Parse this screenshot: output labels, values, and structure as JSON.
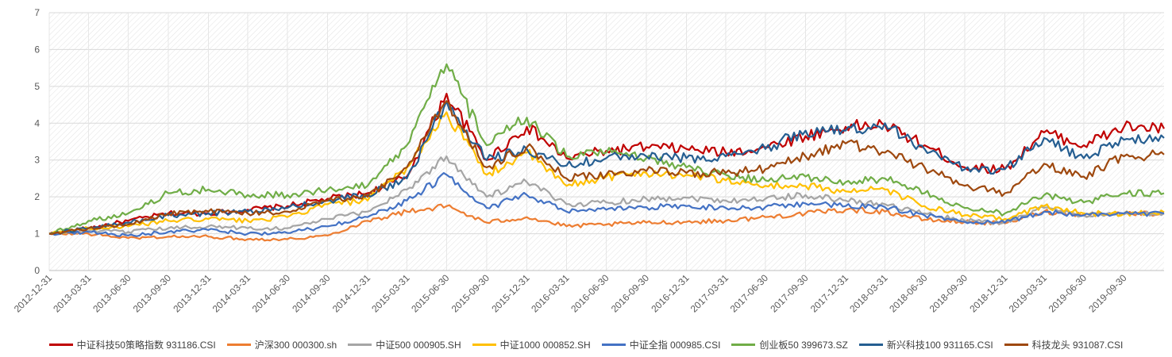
{
  "chart_data": {
    "type": "line",
    "title": "",
    "xlabel": "",
    "ylabel": "",
    "ylim": [
      0,
      7
    ],
    "y_ticks": [
      "0",
      "1",
      "2",
      "3",
      "4",
      "5",
      "6",
      "7"
    ],
    "x_ticks": [
      "2012-12-31",
      "2013-03-31",
      "2013-06-30",
      "2013-09-30",
      "2013-12-31",
      "2014-03-31",
      "2014-06-30",
      "2014-09-30",
      "2014-12-31",
      "2015-03-31",
      "2015-06-30",
      "2015-09-30",
      "2015-12-31",
      "2016-03-31",
      "2016-06-30",
      "2016-09-30",
      "2016-12-31",
      "2017-03-31",
      "2017-06-30",
      "2017-09-30",
      "2017-12-31",
      "2018-03-31",
      "2018-06-30",
      "2018-09-30",
      "2018-12-31",
      "2019-03-31",
      "2019-06-30",
      "2019-09-30"
    ],
    "x_end": "2019-12-31",
    "grid": true,
    "legend_position": "bottom",
    "series": [
      {
        "name": "中证科技50策略指数 931186.CSI",
        "color": "#C00000",
        "values": [
          1.0,
          1.15,
          1.35,
          1.55,
          1.55,
          1.65,
          1.75,
          1.95,
          2.1,
          2.55,
          4.8,
          3.0,
          3.9,
          3.05,
          3.25,
          3.35,
          3.3,
          3.2,
          3.35,
          3.65,
          3.9,
          3.95,
          3.4,
          2.8,
          2.75,
          3.75,
          3.4,
          3.9,
          3.85
        ]
      },
      {
        "name": "沪深300 000300.sh",
        "color": "#ED7D31",
        "values": [
          1.0,
          1.0,
          0.88,
          0.92,
          0.92,
          0.85,
          0.85,
          0.95,
          1.35,
          1.6,
          1.75,
          1.3,
          1.45,
          1.2,
          1.25,
          1.3,
          1.32,
          1.35,
          1.45,
          1.55,
          1.65,
          1.6,
          1.38,
          1.32,
          1.28,
          1.6,
          1.52,
          1.55,
          1.55
        ]
      },
      {
        "name": "中证500 000905.SH",
        "color": "#A5A5A5",
        "values": [
          1.0,
          1.08,
          1.05,
          1.15,
          1.2,
          1.15,
          1.15,
          1.4,
          1.6,
          2.2,
          3.1,
          2.0,
          2.4,
          1.8,
          1.85,
          1.95,
          1.98,
          1.9,
          1.95,
          2.05,
          1.9,
          1.8,
          1.55,
          1.35,
          1.3,
          1.7,
          1.5,
          1.52,
          1.55
        ]
      },
      {
        "name": "中证1000 000852.SH",
        "color": "#FFC000",
        "values": [
          1.0,
          1.15,
          1.2,
          1.35,
          1.4,
          1.35,
          1.45,
          1.8,
          1.9,
          2.8,
          4.3,
          2.6,
          3.2,
          2.3,
          2.55,
          2.65,
          2.6,
          2.45,
          2.3,
          2.3,
          2.15,
          2.2,
          1.75,
          1.5,
          1.4,
          1.75,
          1.55,
          1.55,
          1.58
        ]
      },
      {
        "name": "中证全指 000985.CSI",
        "color": "#4472C4",
        "values": [
          1.0,
          1.05,
          0.95,
          1.05,
          1.1,
          1.0,
          1.02,
          1.2,
          1.45,
          1.9,
          2.6,
          1.7,
          2.05,
          1.6,
          1.65,
          1.72,
          1.75,
          1.7,
          1.72,
          1.82,
          1.75,
          1.72,
          1.5,
          1.32,
          1.3,
          1.6,
          1.5,
          1.55,
          1.55
        ]
      },
      {
        "name": "创业板50 399673.SZ",
        "color": "#70AD47",
        "values": [
          1.0,
          1.35,
          1.55,
          2.1,
          2.2,
          2.05,
          2.05,
          2.2,
          2.3,
          3.4,
          5.6,
          3.4,
          4.15,
          3.1,
          3.2,
          3.05,
          2.8,
          2.6,
          2.45,
          2.55,
          2.4,
          2.5,
          2.1,
          1.7,
          1.55,
          2.05,
          1.85,
          2.1,
          2.1
        ]
      },
      {
        "name": "新兴科技100 931165.CSI",
        "color": "#255E91",
        "values": [
          1.0,
          1.15,
          1.3,
          1.5,
          1.55,
          1.6,
          1.7,
          1.9,
          2.05,
          2.5,
          4.6,
          3.0,
          3.3,
          2.85,
          3.05,
          3.1,
          3.05,
          3.1,
          3.3,
          3.8,
          3.8,
          4.0,
          3.3,
          2.75,
          2.75,
          3.6,
          3.05,
          3.55,
          3.6
        ]
      },
      {
        "name": "科技龙头 931087.CSI",
        "color": "#9E480E",
        "values": [
          1.0,
          1.15,
          1.25,
          1.55,
          1.6,
          1.55,
          1.6,
          1.9,
          2.0,
          2.8,
          4.6,
          2.8,
          3.35,
          2.5,
          2.6,
          2.7,
          2.65,
          2.65,
          2.75,
          3.1,
          3.45,
          3.2,
          2.8,
          2.3,
          2.1,
          2.9,
          2.55,
          3.1,
          3.15
        ]
      }
    ]
  }
}
